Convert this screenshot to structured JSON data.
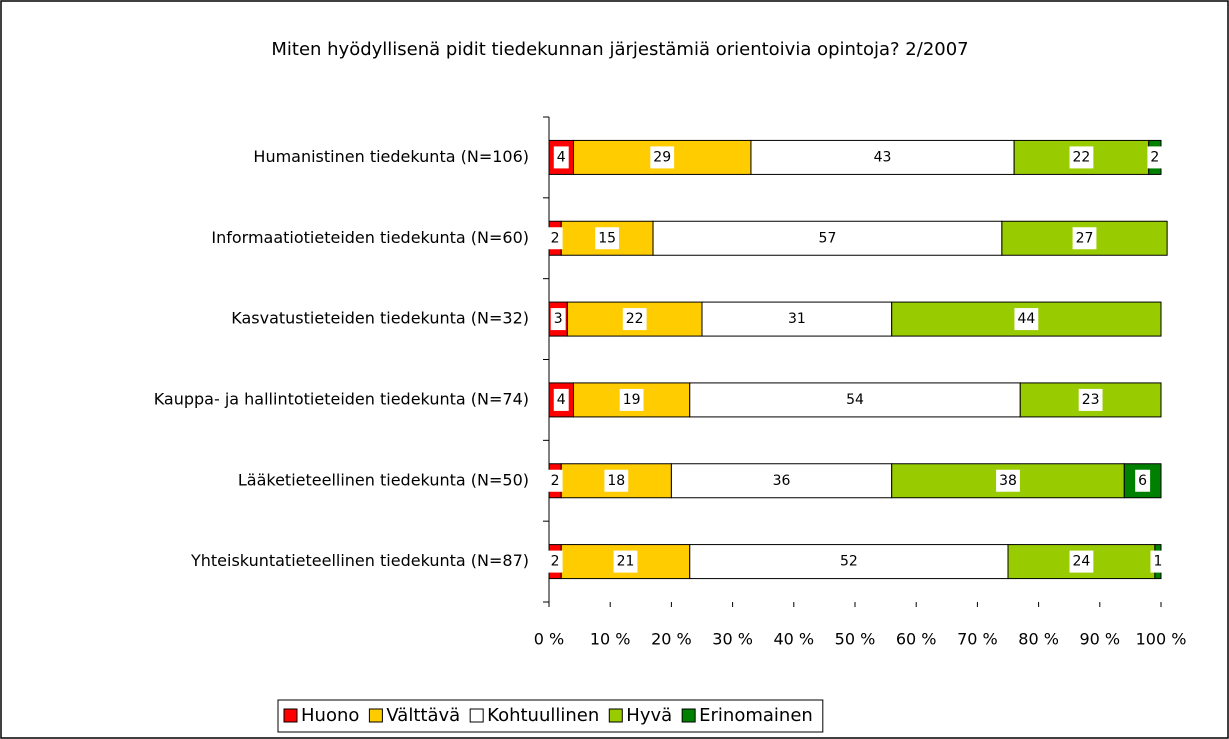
{
  "chart_data": {
    "type": "stacked-bar-horizontal",
    "title": "Miten hyödyllisenä pidit tiedekunnan järjestämiä orientoivia opintoja? 2/2007",
    "categories": [
      "Humanistinen tiedekunta (N=106)",
      "Informaatiotieteiden tiedekunta (N=60)",
      "Kasvatustieteiden tiedekunta (N=32)",
      "Kauppa- ja hallintotieteiden tiedekunta (N=74)",
      "Lääketieteellinen tiedekunta (N=50)",
      "Yhteiskuntatieteellinen tiedekunta (N=87)"
    ],
    "series": [
      {
        "name": "Huono",
        "color": "#ff0000",
        "values": [
          4,
          2,
          3,
          4,
          2,
          2
        ]
      },
      {
        "name": "Välttävä",
        "color": "#ffcc00",
        "values": [
          29,
          15,
          22,
          19,
          18,
          21
        ]
      },
      {
        "name": "Kohtuullinen",
        "color": "#ffffff",
        "values": [
          43,
          57,
          31,
          54,
          36,
          52
        ]
      },
      {
        "name": "Hyvä",
        "color": "#99cc00",
        "values": [
          22,
          27,
          44,
          23,
          38,
          24
        ]
      },
      {
        "name": "Erinomainen",
        "color": "#008000",
        "values": [
          2,
          null,
          null,
          null,
          6,
          1
        ]
      }
    ],
    "xlim": [
      0,
      100
    ],
    "xticks": [
      {
        "value": 0,
        "label": "0 %"
      },
      {
        "value": 10,
        "label": "10 %"
      },
      {
        "value": 20,
        "label": "20 %"
      },
      {
        "value": 30,
        "label": "30 %"
      },
      {
        "value": 40,
        "label": "40 %"
      },
      {
        "value": 50,
        "label": "50 %"
      },
      {
        "value": 60,
        "label": "60 %"
      },
      {
        "value": 70,
        "label": "70 %"
      },
      {
        "value": 80,
        "label": "80 %"
      },
      {
        "value": 90,
        "label": "90 %"
      },
      {
        "value": 100,
        "label": "100 %"
      }
    ],
    "legend": "bottom"
  }
}
